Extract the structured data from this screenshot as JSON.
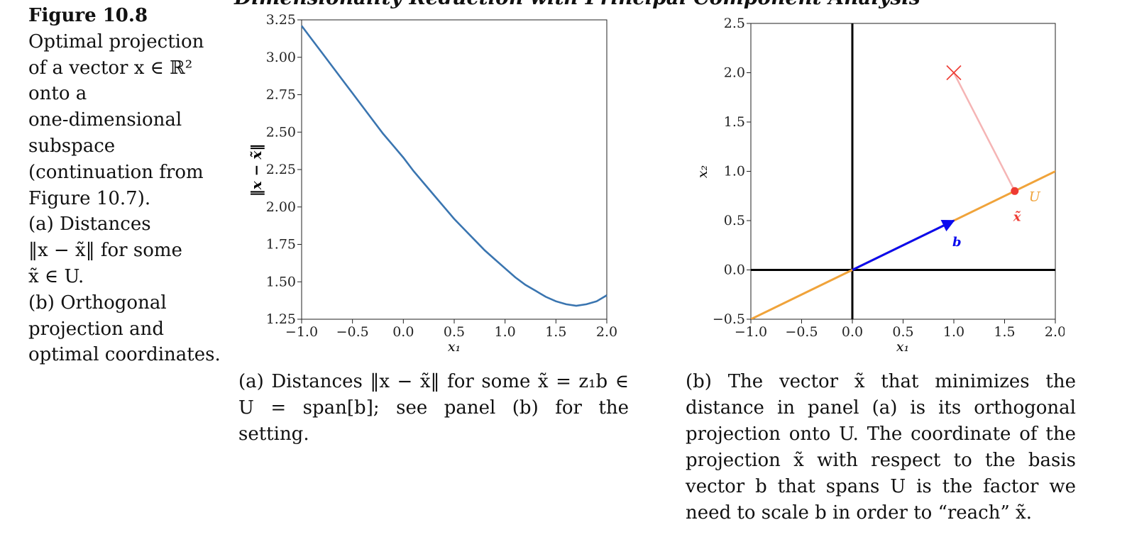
{
  "header_fragment": "Dimensionality Reduction with Principal Component Analysis",
  "side_caption": {
    "figure_label": "Figure 10.8",
    "lines": [
      "Optimal projection",
      "of a vector x ∈ ℝ²",
      "onto a",
      "one-dimensional",
      "subspace",
      "(continuation from",
      "Figure 10.7).",
      "(a) Distances",
      "‖x − x̃‖ for some",
      "x̃ ∈ U.",
      "(b) Orthogonal",
      "projection and",
      "optimal coordinates."
    ]
  },
  "subcaption_a": "(a) Distances ‖x − x̃‖ for some x̃ = z₁b ∈ U = span[b]; see panel (b) for the setting.",
  "subcaption_b": "(b) The vector x̃ that minimizes the distance in panel (a) is its orthogonal projection onto U. The coordinate of the projection x̃ with respect to the basis vector b that spans U is the factor we need to scale b in order to “reach” x̃.",
  "colors": {
    "curve": "#3a75b0",
    "subspace": "#f0a33a",
    "basis": "#0a0aee",
    "point": "#ee3a32",
    "residual": "#f5b5b5"
  },
  "chart_data": [
    {
      "type": "line",
      "xlabel": "x₁",
      "ylabel": "‖x − x̃‖",
      "xlim": [
        -1.0,
        2.0
      ],
      "ylim": [
        1.25,
        3.25
      ],
      "xticks": [
        "−1.0",
        "−0.5",
        "0.0",
        "0.5",
        "1.0",
        "1.5",
        "2.0"
      ],
      "yticks": [
        "1.25",
        "1.50",
        "1.75",
        "2.00",
        "2.25",
        "2.50",
        "2.75",
        "3.00",
        "3.25"
      ],
      "series": [
        {
          "x": [
            -1.0,
            -0.9,
            -0.8,
            -0.7,
            -0.6,
            -0.5,
            -0.4,
            -0.3,
            -0.2,
            -0.1,
            0.0,
            0.1,
            0.2,
            0.3,
            0.4,
            0.5,
            0.6,
            0.7,
            0.8,
            0.9,
            1.0,
            1.1,
            1.2,
            1.3,
            1.4,
            1.5,
            1.6,
            1.7,
            1.8,
            1.9,
            2.0
          ],
          "values": [
            3.21,
            3.12,
            3.03,
            2.94,
            2.85,
            2.76,
            2.67,
            2.58,
            2.49,
            2.41,
            2.33,
            2.24,
            2.16,
            2.08,
            2.0,
            1.92,
            1.85,
            1.78,
            1.71,
            1.65,
            1.59,
            1.53,
            1.48,
            1.44,
            1.4,
            1.37,
            1.35,
            1.34,
            1.35,
            1.37,
            1.41
          ]
        }
      ]
    },
    {
      "type": "scatter",
      "xlabel": "x₁",
      "ylabel": "x₂",
      "xlim": [
        -1.0,
        2.0
      ],
      "ylim": [
        -0.5,
        2.5
      ],
      "xticks": [
        "−1.0",
        "−0.5",
        "0.0",
        "0.5",
        "1.0",
        "1.5",
        "2.0"
      ],
      "yticks": [
        "−0.5",
        "0.0",
        "0.5",
        "1.0",
        "1.5",
        "2.0",
        "2.5"
      ],
      "subspace_label": "U",
      "subspace_direction": [
        2,
        1
      ],
      "basis_vector": {
        "label": "b",
        "x": 1.0,
        "y": 0.5
      },
      "point_x": {
        "marker": "×",
        "x": 1.0,
        "y": 2.0
      },
      "projection": {
        "label": "x̃",
        "x": 1.6,
        "y": 0.8
      }
    }
  ]
}
